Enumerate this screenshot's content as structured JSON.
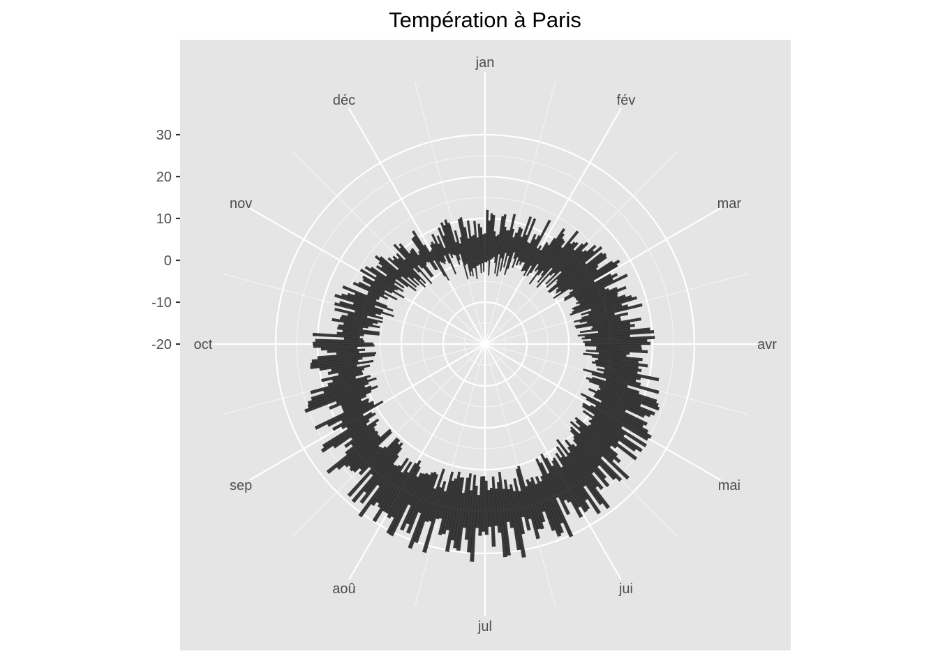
{
  "chart_data": {
    "type": "bar",
    "coordinate_system": "polar",
    "title": "Températion à Paris",
    "xlabel": "",
    "ylabel": "",
    "categories": [
      "jan",
      "fév",
      "mar",
      "avr",
      "mai",
      "jui",
      "jul",
      "aoû",
      "sep",
      "oct",
      "nov",
      "déc"
    ],
    "radial_ticks": [
      "30",
      "20",
      "10",
      "0",
      "-10",
      "-20"
    ],
    "radial_tick_values": [
      30,
      20,
      10,
      0,
      -10,
      -20
    ],
    "ylim": [
      -20,
      45
    ],
    "grid": true,
    "panel_background": "#e5e5e5",
    "grid_color": "#ffffff",
    "bar_color": "#1a1a1a",
    "bar_opacity": 0.85,
    "series": [
      {
        "day_range": [
          1,
          365
        ],
        "monthly_min_range": [
          [
            -5,
            2
          ],
          [
            -3,
            4
          ],
          [
            0,
            6
          ],
          [
            2,
            8
          ],
          [
            6,
            12
          ],
          [
            9,
            15
          ],
          [
            11,
            17
          ],
          [
            11,
            17
          ],
          [
            8,
            14
          ],
          [
            5,
            11
          ],
          [
            1,
            7
          ],
          [
            -3,
            4
          ]
        ],
        "monthly_max_range": [
          [
            4,
            12
          ],
          [
            6,
            14
          ],
          [
            10,
            18
          ],
          [
            13,
            21
          ],
          [
            17,
            26
          ],
          [
            20,
            30
          ],
          [
            23,
            33
          ],
          [
            22,
            32
          ],
          [
            18,
            28
          ],
          [
            14,
            22
          ],
          [
            8,
            15
          ],
          [
            5,
            12
          ]
        ]
      }
    ]
  }
}
